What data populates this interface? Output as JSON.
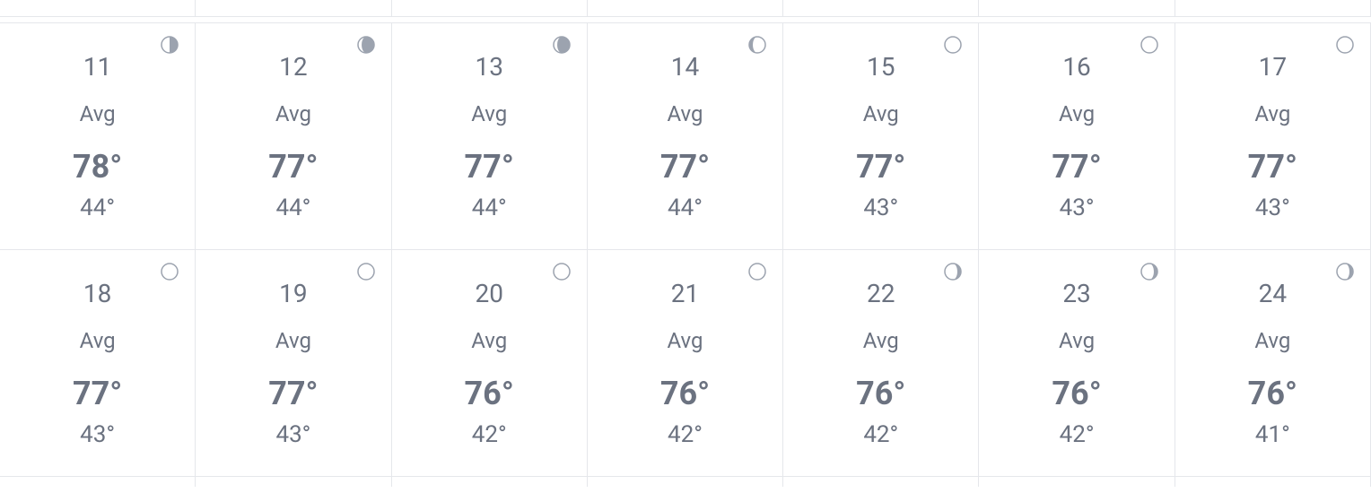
{
  "colors": {
    "text": "#6b7280",
    "border": "#e5e7eb",
    "bg": "#ffffff",
    "moon_stroke": "#9ca3af",
    "moon_fill_dark": "#9ca3af",
    "moon_fill_light": "#ffffff"
  },
  "avg_label": "Avg",
  "days": [
    {
      "day": "11",
      "high": "78°",
      "low": "44°",
      "moon": {
        "shape": "half",
        "side": "right"
      }
    },
    {
      "day": "12",
      "high": "77°",
      "low": "44°",
      "moon": {
        "shape": "gibbous",
        "side": "right"
      }
    },
    {
      "day": "13",
      "high": "77°",
      "low": "44°",
      "moon": {
        "shape": "gibbous",
        "side": "right"
      }
    },
    {
      "day": "14",
      "high": "77°",
      "low": "44°",
      "moon": {
        "shape": "crescent",
        "side": "left"
      }
    },
    {
      "day": "15",
      "high": "77°",
      "low": "43°",
      "moon": {
        "shape": "circle",
        "side": "none"
      }
    },
    {
      "day": "16",
      "high": "77°",
      "low": "43°",
      "moon": {
        "shape": "circle",
        "side": "none"
      }
    },
    {
      "day": "17",
      "high": "77°",
      "low": "43°",
      "moon": {
        "shape": "circle",
        "side": "none"
      }
    },
    {
      "day": "18",
      "high": "77°",
      "low": "43°",
      "moon": {
        "shape": "circle",
        "side": "none"
      }
    },
    {
      "day": "19",
      "high": "77°",
      "low": "43°",
      "moon": {
        "shape": "circle",
        "side": "none"
      }
    },
    {
      "day": "20",
      "high": "76°",
      "low": "42°",
      "moon": {
        "shape": "circle",
        "side": "none"
      }
    },
    {
      "day": "21",
      "high": "76°",
      "low": "42°",
      "moon": {
        "shape": "circle",
        "side": "none"
      }
    },
    {
      "day": "22",
      "high": "76°",
      "low": "42°",
      "moon": {
        "shape": "crescent",
        "side": "right"
      }
    },
    {
      "day": "23",
      "high": "76°",
      "low": "42°",
      "moon": {
        "shape": "crescent",
        "side": "right"
      }
    },
    {
      "day": "24",
      "high": "76°",
      "low": "41°",
      "moon": {
        "shape": "crescent",
        "side": "right"
      }
    }
  ]
}
